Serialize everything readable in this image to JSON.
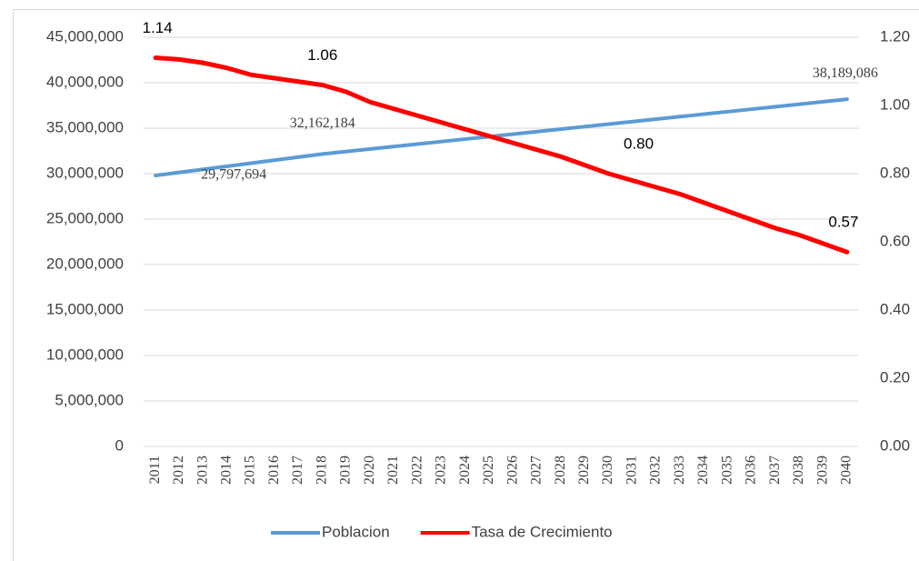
{
  "chart_data": {
    "type": "line",
    "categories": [
      "2011",
      "2012",
      "2013",
      "2014",
      "2015",
      "2016",
      "2017",
      "2018",
      "2019",
      "2020",
      "2021",
      "2022",
      "2023",
      "2024",
      "2025",
      "2026",
      "2027",
      "2028",
      "2029",
      "2030",
      "2031",
      "2032",
      "2033",
      "2034",
      "2035",
      "2036",
      "2037",
      "2038",
      "2039",
      "2040"
    ],
    "series": [
      {
        "name": "Poblacion",
        "color": "#5b9bd5",
        "axis": "y",
        "values": [
          29797694,
          30135478,
          30473262,
          30811046,
          31148830,
          31486614,
          31824398,
          32162184,
          32436134,
          32710084,
          32984034,
          33257984,
          33531934,
          33805884,
          34079834,
          34353784,
          34627734,
          34901684,
          35175634,
          35449584,
          35723534,
          35997484,
          36271434,
          36545384,
          36819334,
          37093284,
          37367234,
          37641184,
          37915134,
          38189086
        ],
        "value_labels": [
          "29,797,694",
          null,
          null,
          null,
          null,
          null,
          null,
          "32,162,184",
          null,
          null,
          null,
          null,
          null,
          null,
          null,
          null,
          null,
          null,
          null,
          null,
          null,
          null,
          null,
          null,
          null,
          null,
          null,
          null,
          null,
          "38,189,086"
        ]
      },
      {
        "name": "Tasa de Crecimiento",
        "color": "#ff0000",
        "axis": "y2",
        "values": [
          1.14,
          1.135,
          1.125,
          1.11,
          1.09,
          1.08,
          1.07,
          1.06,
          1.04,
          1.01,
          0.99,
          0.97,
          0.95,
          0.93,
          0.91,
          0.89,
          0.87,
          0.85,
          0.825,
          0.8,
          0.78,
          0.76,
          0.74,
          0.715,
          0.69,
          0.665,
          0.64,
          0.62,
          0.595,
          0.57
        ],
        "value_labels": [
          "1.14",
          null,
          null,
          null,
          null,
          null,
          null,
          "1.06",
          null,
          null,
          null,
          null,
          null,
          null,
          null,
          null,
          null,
          null,
          null,
          "0.80",
          null,
          null,
          null,
          null,
          null,
          null,
          null,
          null,
          null,
          "0.57"
        ]
      }
    ],
    "ylim": [
      0,
      45000000
    ],
    "yticks": [
      0,
      {
        "value": 5000000,
        "label": "5,000,000"
      },
      {
        "value": 10000000,
        "label": "10,000,000"
      },
      {
        "value": 15000000,
        "label": "15,000,000"
      },
      {
        "value": 20000000,
        "label": "20,000,000"
      },
      {
        "value": 25000000,
        "label": "25,000,000"
      },
      {
        "value": 30000000,
        "label": "30,000,000"
      },
      {
        "value": 35000000,
        "label": "35,000,000"
      },
      {
        "value": 40000000,
        "label": "40,000,000"
      },
      {
        "value": 45000000,
        "label": "45,000,000"
      }
    ],
    "y2lim": [
      0,
      1.2
    ],
    "y2ticks": [
      {
        "value": 0,
        "label": "0.00"
      },
      {
        "value": 0.2,
        "label": "0.20"
      },
      {
        "value": 0.4,
        "label": "0.40"
      },
      {
        "value": 0.6,
        "label": "0.60"
      },
      {
        "value": 0.8,
        "label": "0.80"
      },
      {
        "value": 1,
        "label": "1.00"
      },
      {
        "value": 1.2,
        "label": "1.20"
      }
    ],
    "legend": "bottom",
    "grid": true
  }
}
